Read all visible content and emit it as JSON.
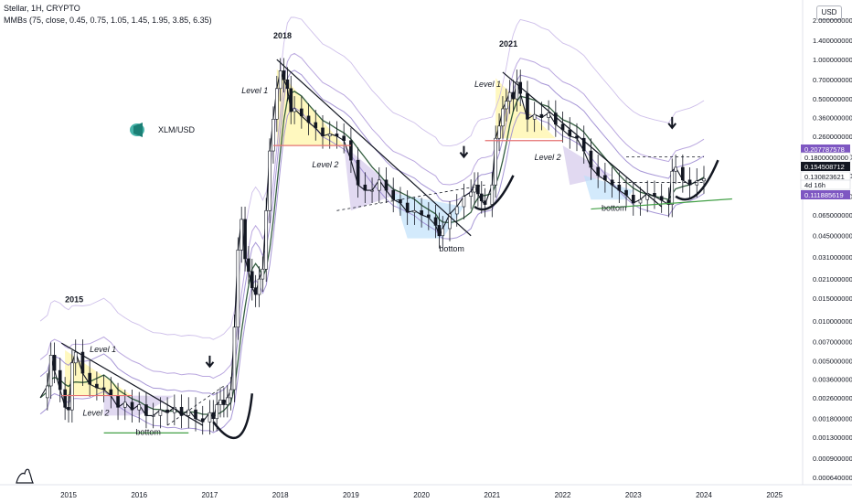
{
  "header": {
    "title": "Stellar, 1H, CRYPTO",
    "indicator": "MMBs (75, close, 0.45, 0.75, 1.05, 1.45, 1.95, 3.85, 6.35)"
  },
  "currency_button": "USD",
  "symbol_label": "XLM/USD",
  "chart_data": {
    "type": "line",
    "scale": "log",
    "y_ticks": [
      "2.000000000",
      "1.400000000",
      "1.000000000",
      "0.700000000",
      "0.500000000",
      "0.360000000",
      "0.260000000",
      "0.180000000",
      "0.130000000",
      "0.090000000",
      "0.065000000",
      "0.045000000",
      "0.031000000",
      "0.021000000",
      "0.015000000",
      "0.010000000",
      "0.007000000",
      "0.005000000",
      "0.003600000",
      "0.002600000",
      "0.001800000",
      "0.001300000",
      "0.000900000",
      "0.000640000"
    ],
    "y_tick_values": [
      2.0,
      1.4,
      1.0,
      0.7,
      0.5,
      0.36,
      0.26,
      0.18,
      0.13,
      0.09,
      0.065,
      0.045,
      0.031,
      0.021,
      0.015,
      0.01,
      0.007,
      0.005,
      0.0036,
      0.0026,
      0.0018,
      0.0013,
      0.0009,
      0.00064
    ],
    "x_ticks": [
      "2015",
      "2016",
      "2017",
      "2018",
      "2019",
      "2020",
      "2021",
      "2022",
      "2023",
      "2024",
      "2025"
    ],
    "x_tick_values": [
      2015,
      2016,
      2017,
      2018,
      2019,
      2020,
      2021,
      2022,
      2023,
      2024,
      2025
    ],
    "xlim": [
      2014.7,
      2025.9
    ],
    "ylim": [
      0.00058,
      2.3
    ],
    "grid": false,
    "price_series": {
      "x": [
        2014.6,
        2014.7,
        2014.75,
        2014.8,
        2014.88,
        2014.95,
        2015.0,
        2015.05,
        2015.1,
        2015.2,
        2015.3,
        2015.4,
        2015.5,
        2015.6,
        2015.7,
        2015.8,
        2015.9,
        2016.0,
        2016.1,
        2016.2,
        2016.3,
        2016.4,
        2016.5,
        2016.6,
        2016.7,
        2016.8,
        2016.9,
        2017.0,
        2017.05,
        2017.1,
        2017.15,
        2017.2,
        2017.25,
        2017.3,
        2017.35,
        2017.4,
        2017.45,
        2017.5,
        2017.55,
        2017.6,
        2017.65,
        2017.7,
        2017.75,
        2017.8,
        2017.85,
        2017.9,
        2017.95,
        2018.0,
        2018.05,
        2018.1,
        2018.15,
        2018.2,
        2018.3,
        2018.4,
        2018.5,
        2018.6,
        2018.7,
        2018.8,
        2018.9,
        2019.0,
        2019.1,
        2019.2,
        2019.3,
        2019.4,
        2019.5,
        2019.6,
        2019.7,
        2019.8,
        2019.9,
        2020.0,
        2020.1,
        2020.2,
        2020.25,
        2020.3,
        2020.4,
        2020.5,
        2020.6,
        2020.7,
        2020.75,
        2020.8,
        2020.85,
        2020.9,
        2021.0,
        2021.05,
        2021.1,
        2021.15,
        2021.2,
        2021.25,
        2021.3,
        2021.35,
        2021.4,
        2021.5,
        2021.6,
        2021.7,
        2021.8,
        2021.9,
        2022.0,
        2022.1,
        2022.2,
        2022.3,
        2022.4,
        2022.5,
        2022.6,
        2022.7,
        2022.8,
        2022.9,
        2023.0,
        2023.1,
        2023.2,
        2023.3,
        2023.4,
        2023.5,
        2023.55,
        2023.6,
        2023.7,
        2023.8,
        2023.9,
        2024.0
      ],
      "y": [
        0.0026,
        0.0032,
        0.0055,
        0.0042,
        0.003,
        0.0022,
        0.0021,
        0.0048,
        0.0058,
        0.004,
        0.0033,
        0.0031,
        0.003,
        0.0027,
        0.0022,
        0.0024,
        0.0021,
        0.0023,
        0.0019,
        0.0019,
        0.0021,
        0.002,
        0.0022,
        0.0019,
        0.0021,
        0.0018,
        0.0017,
        0.002,
        0.0018,
        0.0023,
        0.0025,
        0.0023,
        0.0026,
        0.003,
        0.009,
        0.035,
        0.06,
        0.03,
        0.024,
        0.018,
        0.016,
        0.021,
        0.025,
        0.07,
        0.2,
        0.35,
        0.6,
        0.82,
        0.7,
        0.6,
        0.4,
        0.42,
        0.37,
        0.33,
        0.3,
        0.26,
        0.27,
        0.26,
        0.24,
        0.17,
        0.11,
        0.1,
        0.1,
        0.12,
        0.1,
        0.085,
        0.08,
        0.068,
        0.07,
        0.065,
        0.062,
        0.054,
        0.045,
        0.051,
        0.066,
        0.075,
        0.09,
        0.097,
        0.11,
        0.094,
        0.083,
        0.078,
        0.11,
        0.25,
        0.31,
        0.42,
        0.48,
        0.56,
        0.5,
        0.67,
        0.55,
        0.35,
        0.38,
        0.36,
        0.39,
        0.32,
        0.29,
        0.26,
        0.25,
        0.2,
        0.15,
        0.13,
        0.12,
        0.11,
        0.1,
        0.092,
        0.08,
        0.085,
        0.095,
        0.09,
        0.084,
        0.078,
        0.14,
        0.15,
        0.12,
        0.11,
        0.118,
        0.123
      ]
    },
    "y_axis_badges": [
      {
        "value": "0.207787578",
        "color": "#7e57c2"
      },
      {
        "value": "0.1800000000",
        "color": "#ffffff"
      },
      {
        "value": "0.154508712",
        "color": "#131722"
      },
      {
        "value": "0.130823621",
        "color": "#ffffff"
      },
      {
        "value": "4d 16h",
        "color": "#ffffff"
      },
      {
        "value": "0.111885619",
        "color": "#7e57c2"
      }
    ],
    "annotations": {
      "year_labels": [
        "2015",
        "2018",
        "2021"
      ],
      "level1": "Level 1",
      "level2": "Level 2",
      "bottom": "bottom"
    }
  }
}
